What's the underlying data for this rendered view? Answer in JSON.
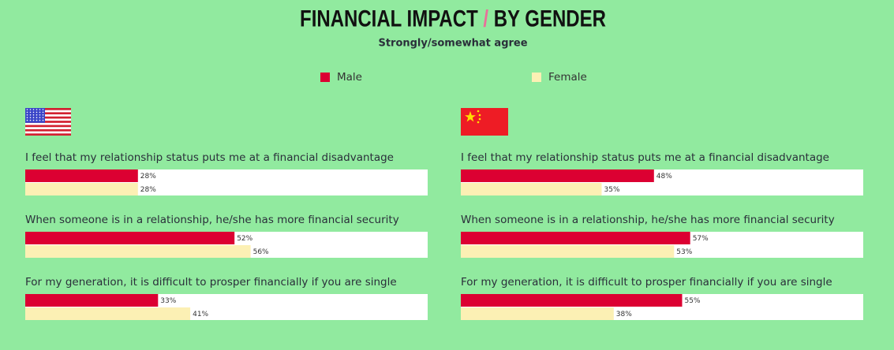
{
  "title": "FINANCIAL IMPACT / BY GENDER",
  "subtitle": "Strongly/somewhat agree",
  "chart_data": [
    {
      "type": "hbar",
      "categories": [
        "I feel that my relationship status puts me at a financial disadvantage",
        "When someone is in a relationship, he/she has more financial security",
        "For my generation, it is difficult to prosper financially if you are single"
      ],
      "xlim": [
        0,
        100
      ],
      "series": [
        {
          "name": "Male",
          "color": "#dc0032",
          "values": [
            28,
            52,
            33
          ],
          "value_labels": [
            "28%",
            "52%",
            "33%"
          ]
        },
        {
          "name": "Female",
          "color": "#fcf0b4",
          "values": [
            28,
            56,
            41
          ],
          "value_labels": [
            "28%",
            "56%",
            "41%"
          ]
        }
      ]
    },
    {
      "type": "hbar",
      "categories": [
        "I feel that my relationship status puts me at a financial disadvantage",
        "When someone is in a relationship, he/she has more financial security",
        "For my generation, it is difficult to prosper financially if you are single"
      ],
      "xlim": [
        0,
        100
      ],
      "series": [
        {
          "name": "Male",
          "color": "#dc0032",
          "values": [
            48,
            57,
            55
          ],
          "value_labels": [
            "48%",
            "57%",
            "55%"
          ]
        },
        {
          "name": "Female",
          "color": "#fcf0b4",
          "values": [
            35,
            53,
            38
          ],
          "value_labels": [
            "35%",
            "53%",
            "38%"
          ]
        }
      ]
    }
  ]
}
